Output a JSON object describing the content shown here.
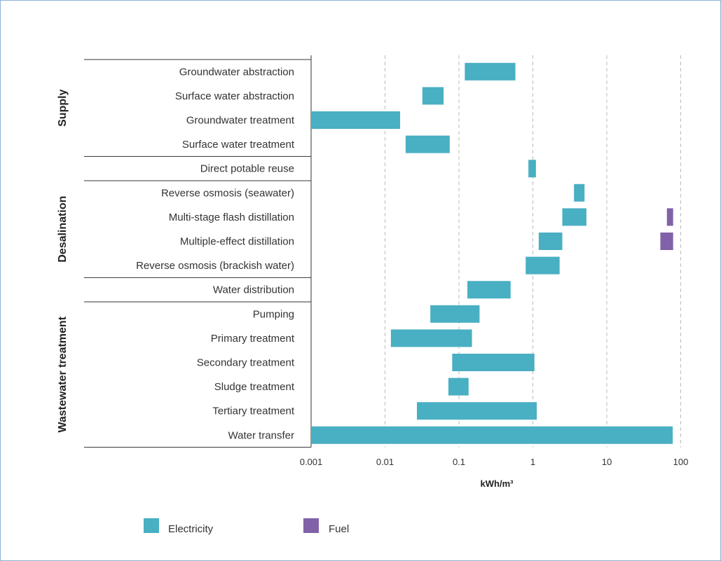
{
  "colors": {
    "electricity": "#49afc3",
    "fuel": "#8162a8",
    "grid": "#bbbbbb",
    "axis": "#333333"
  },
  "chart_data": {
    "type": "bar",
    "orientation": "horizontal-range",
    "xscale": "log",
    "xlim": [
      0.001,
      100
    ],
    "xticks": [
      "0.001",
      "0.01",
      "0.1",
      "1",
      "10",
      "100"
    ],
    "xlabel": "kWh/m³",
    "grid": "vertical dashed",
    "legend_position": "bottom-left",
    "series": [
      {
        "name": "Electricity",
        "color": "#49afc3"
      },
      {
        "name": "Fuel",
        "color": "#8162a8"
      }
    ],
    "groups": [
      {
        "label": "Supply",
        "rows": [
          0,
          3
        ]
      },
      {
        "label": "Desalination",
        "rows": [
          5,
          8
        ]
      },
      {
        "label": "Wastewater treatment",
        "rows": [
          10,
          15
        ]
      }
    ],
    "rows": [
      {
        "label": "Groundwater abstraction",
        "electricity": [
          0.12,
          0.58
        ]
      },
      {
        "label": "Surface water abstraction",
        "electricity": [
          0.032,
          0.062
        ]
      },
      {
        "label": "Groundwater treatment",
        "electricity": [
          0.001,
          0.016
        ]
      },
      {
        "label": "Surface water treatment",
        "electricity": [
          0.019,
          0.075
        ]
      },
      {
        "label": "Direct potable reuse",
        "electricity": [
          0.87,
          1.1
        ]
      },
      {
        "label": "Reverse osmosis (seawater)",
        "electricity": [
          3.6,
          5.0
        ]
      },
      {
        "label": "Multi-stage flash distillation",
        "electricity": [
          2.5,
          5.3
        ],
        "fuel": [
          65,
          79
        ]
      },
      {
        "label": "Multiple-effect distillation",
        "electricity": [
          1.2,
          2.5
        ],
        "fuel": [
          53,
          79
        ]
      },
      {
        "label": "Reverse osmosis (brackish water)",
        "electricity": [
          0.8,
          2.3
        ]
      },
      {
        "label": "Water distribution",
        "electricity": [
          0.13,
          0.5
        ]
      },
      {
        "label": "Pumping",
        "electricity": [
          0.041,
          0.19
        ]
      },
      {
        "label": "Primary treatment",
        "electricity": [
          0.012,
          0.15
        ]
      },
      {
        "label": "Secondary treatment",
        "electricity": [
          0.081,
          1.05
        ]
      },
      {
        "label": "Sludge treatment",
        "electricity": [
          0.072,
          0.135
        ]
      },
      {
        "label": "Tertiary treatment",
        "electricity": [
          0.027,
          1.13
        ]
      },
      {
        "label": "Water transfer",
        "electricity": [
          0.001,
          78
        ]
      }
    ]
  },
  "legend": {
    "electricity_label": "Electricity",
    "fuel_label": "Fuel"
  }
}
